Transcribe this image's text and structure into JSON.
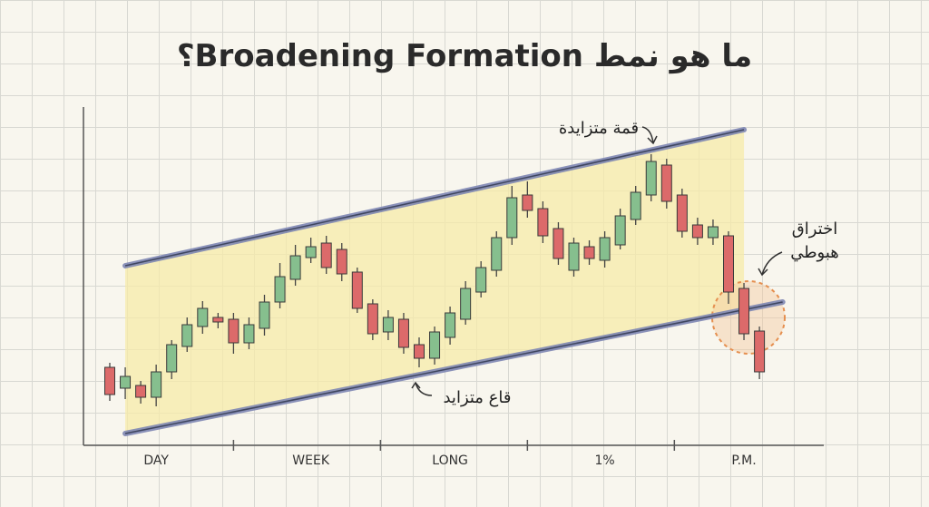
{
  "chart_data": {
    "type": "candlestick",
    "title": "ما هو نمط Broadening Formation؟",
    "categories": [
      null,
      null,
      null,
      "DAY",
      null,
      null,
      null,
      null,
      null,
      null,
      null,
      null,
      null,
      "WEEK",
      null,
      null,
      null,
      null,
      null,
      null,
      null,
      null,
      "LONG",
      null,
      null,
      null,
      null,
      null,
      null,
      null,
      null,
      null,
      "1%",
      null,
      null,
      null,
      null,
      null,
      null,
      null,
      null,
      "P.M.",
      null
    ],
    "open": [
      42.5,
      31,
      32.5,
      26,
      40,
      54,
      65,
      70,
      69,
      56,
      64,
      78.5,
      91,
      103,
      111,
      107.5,
      95,
      77.5,
      62,
      69,
      55,
      47.5,
      59,
      69,
      84,
      96,
      114,
      137.5,
      130,
      119,
      96,
      109,
      101.5,
      110,
      124,
      137.5,
      154,
      137.5,
      121,
      114,
      115,
      86,
      62.5
    ],
    "high": [
      45,
      42.5,
      35,
      44,
      57.5,
      70,
      79,
      72.5,
      72.5,
      70,
      82.5,
      100,
      110,
      114,
      115,
      111,
      97.5,
      80,
      74,
      72.5,
      59,
      65,
      76,
      90,
      101,
      117.5,
      142.5,
      145,
      134,
      122.5,
      114,
      112.5,
      117.5,
      130,
      142.5,
      160,
      157.5,
      141,
      125,
      124,
      117.5,
      89,
      65
    ],
    "low": [
      24,
      25,
      22.5,
      21,
      36,
      51,
      61,
      64,
      50,
      52.5,
      60,
      75,
      87.5,
      100,
      94,
      90,
      72.5,
      57.5,
      57.5,
      50,
      42.5,
      44,
      55,
      66,
      81,
      92.5,
      110,
      125,
      111,
      99,
      92.5,
      99,
      97.5,
      107.5,
      121,
      134,
      130,
      114,
      110,
      110,
      77.5,
      57.5,
      36
    ],
    "close": [
      27.5,
      37.5,
      26,
      40,
      55,
      66,
      75,
      67.5,
      56,
      66,
      78.5,
      92.5,
      104,
      109,
      97.5,
      94,
      75,
      61,
      70,
      53.5,
      47.5,
      62,
      72.5,
      86,
      97.5,
      114,
      136,
      129,
      115,
      102.5,
      111,
      102.5,
      114,
      126,
      139,
      156,
      134,
      117.5,
      114,
      120,
      84,
      61,
      40
    ],
    "up_color": "#86bf8e",
    "down_color": "#dc6a6a",
    "ylim": [
      0,
      185
    ],
    "trendlines": [
      {
        "x": [
          1,
          41
        ],
        "values": [
          98.5,
          173.5
        ],
        "color": "#7d86b3"
      },
      {
        "x": [
          1,
          43.5
        ],
        "values": [
          6,
          78.5
        ],
        "color": "#7d86b3"
      }
    ],
    "annotations": {
      "top": "قمة متزايدة",
      "bottom": "قاع متزايد",
      "breakout": [
        "اختراق",
        "هبوطي"
      ]
    }
  }
}
